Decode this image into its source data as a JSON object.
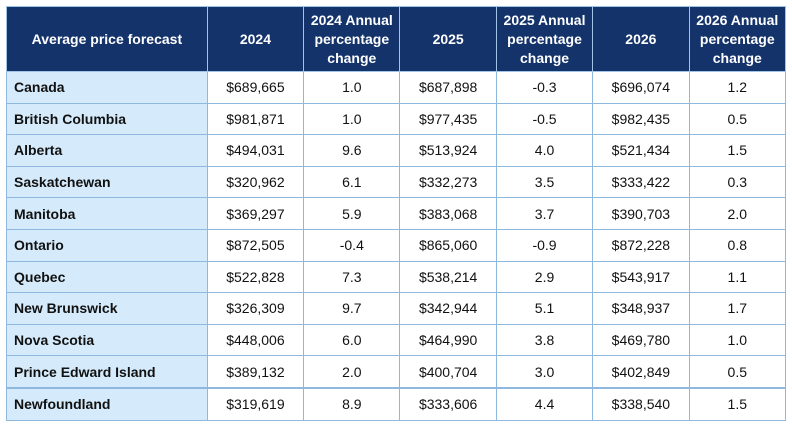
{
  "table": {
    "headers": [
      "Average price forecast",
      "2024",
      "2024 Annual percentage change",
      "2025",
      "2025 Annual percentage change",
      "2026",
      "2026 Annual percentage change"
    ],
    "rows": [
      [
        "Canada",
        "$689,665",
        "1.0",
        "$687,898",
        "-0.3",
        "$696,074",
        "1.2"
      ],
      [
        "British Columbia",
        "$981,871",
        "1.0",
        "$977,435",
        "-0.5",
        "$982,435",
        "0.5"
      ],
      [
        "Alberta",
        "$494,031",
        "9.6",
        "$513,924",
        "4.0",
        "$521,434",
        "1.5"
      ],
      [
        "Saskatchewan",
        "$320,962",
        "6.1",
        "$332,273",
        "3.5",
        "$333,422",
        "0.3"
      ],
      [
        "Manitoba",
        "$369,297",
        "5.9",
        "$383,068",
        "3.7",
        "$390,703",
        "2.0"
      ],
      [
        "Ontario",
        "$872,505",
        "-0.4",
        "$865,060",
        "-0.9",
        "$872,228",
        "0.8"
      ],
      [
        "Quebec",
        "$522,828",
        "7.3",
        "$538,214",
        "2.9",
        "$543,917",
        "1.1"
      ],
      [
        "New Brunswick",
        "$326,309",
        "9.7",
        "$342,944",
        "5.1",
        "$348,937",
        "1.7"
      ],
      [
        "Nova Scotia",
        "$448,006",
        "6.0",
        "$464,990",
        "3.8",
        "$469,780",
        "1.0"
      ],
      [
        "Prince Edward Island",
        "$389,132",
        "2.0",
        "$400,704",
        "3.0",
        "$402,849",
        "0.5"
      ],
      [
        "Newfoundland",
        "$319,619",
        "8.9",
        "$333,606",
        "4.4",
        "$338,540",
        "1.5"
      ]
    ]
  },
  "colors": {
    "header_bg": "#14336b",
    "header_text": "#ffffff",
    "first_col_bg": "#d5ebfb",
    "grid": "#8fb8de"
  }
}
